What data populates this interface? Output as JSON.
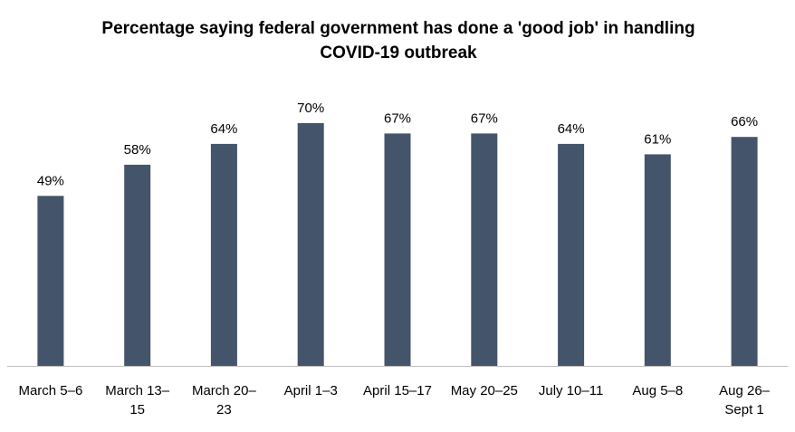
{
  "chart_data": {
    "type": "bar",
    "title": "Percentage saying federal government has done a 'good job' in handling COVID-19 outbreak",
    "xlabel": "",
    "ylabel": "",
    "categories": [
      [
        "March 5–6"
      ],
      [
        "March 13–",
        "15"
      ],
      [
        "March 20–",
        "23"
      ],
      [
        "April 1–3"
      ],
      [
        "April 15–17"
      ],
      [
        "May 20–25"
      ],
      [
        "July 10–11"
      ],
      [
        "Aug 5–8"
      ],
      [
        "Aug 26–",
        "Sept 1"
      ]
    ],
    "values": [
      49,
      58,
      64,
      70,
      67,
      67,
      64,
      61,
      66
    ],
    "value_labels": [
      "49%",
      "58%",
      "64%",
      "70%",
      "67%",
      "67%",
      "64%",
      "61%",
      "66%"
    ],
    "ylim": [
      0,
      100
    ],
    "grid": false,
    "legend": "none",
    "bar_color": "#44546A",
    "axis_color": "#BFBFBF",
    "text_color": "#000000"
  }
}
